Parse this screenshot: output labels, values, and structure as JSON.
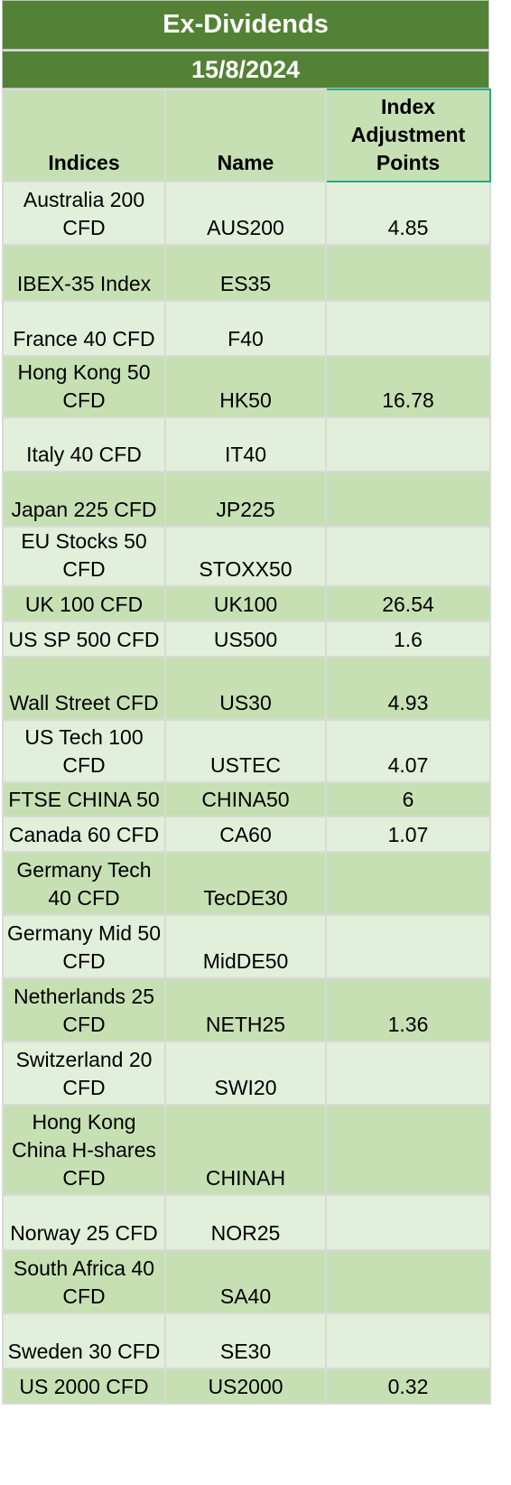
{
  "title": "Ex-Dividends",
  "date": "15/8/2024",
  "columns": {
    "indices": "Indices",
    "name": "Name",
    "points": "Index Adjustment Points"
  },
  "rows": [
    {
      "index": "Australia 200 CFD",
      "name": "AUS200",
      "points": "4.85"
    },
    {
      "index": "IBEX-35 Index",
      "name": "ES35",
      "points": ""
    },
    {
      "index": "France 40 CFD",
      "name": "F40",
      "points": ""
    },
    {
      "index": "Hong Kong 50 CFD",
      "name": "HK50",
      "points": "16.78"
    },
    {
      "index": "Italy 40 CFD",
      "name": "IT40",
      "points": ""
    },
    {
      "index": "Japan 225 CFD",
      "name": "JP225",
      "points": ""
    },
    {
      "index": "EU Stocks 50 CFD",
      "name": "STOXX50",
      "points": ""
    },
    {
      "index": "UK 100 CFD",
      "name": "UK100",
      "points": "26.54"
    },
    {
      "index": "US SP 500 CFD",
      "name": "US500",
      "points": "1.6"
    },
    {
      "index": "Wall Street CFD",
      "name": "US30",
      "points": "4.93"
    },
    {
      "index": "US Tech 100 CFD",
      "name": "USTEC",
      "points": "4.07"
    },
    {
      "index": "FTSE CHINA 50",
      "name": "CHINA50",
      "points": "6"
    },
    {
      "index": "Canada 60 CFD",
      "name": "CA60",
      "points": "1.07"
    },
    {
      "index": "Germany Tech 40 CFD",
      "name": "TecDE30",
      "points": ""
    },
    {
      "index": "Germany Mid 50 CFD",
      "name": "MidDE50",
      "points": ""
    },
    {
      "index": "Netherlands 25 CFD",
      "name": "NETH25",
      "points": "1.36"
    },
    {
      "index": "Switzerland 20 CFD",
      "name": "SWI20",
      "points": ""
    },
    {
      "index": "Hong Kong China H-shares CFD",
      "name": "CHINAH",
      "points": ""
    },
    {
      "index": "Norway 25 CFD",
      "name": "NOR25",
      "points": ""
    },
    {
      "index": "South Africa 40 CFD",
      "name": "SA40",
      "points": ""
    },
    {
      "index": "Sweden 30 CFD",
      "name": "SE30",
      "points": ""
    },
    {
      "index": "US 2000 CFD",
      "name": "US2000",
      "points": "0.32"
    }
  ]
}
